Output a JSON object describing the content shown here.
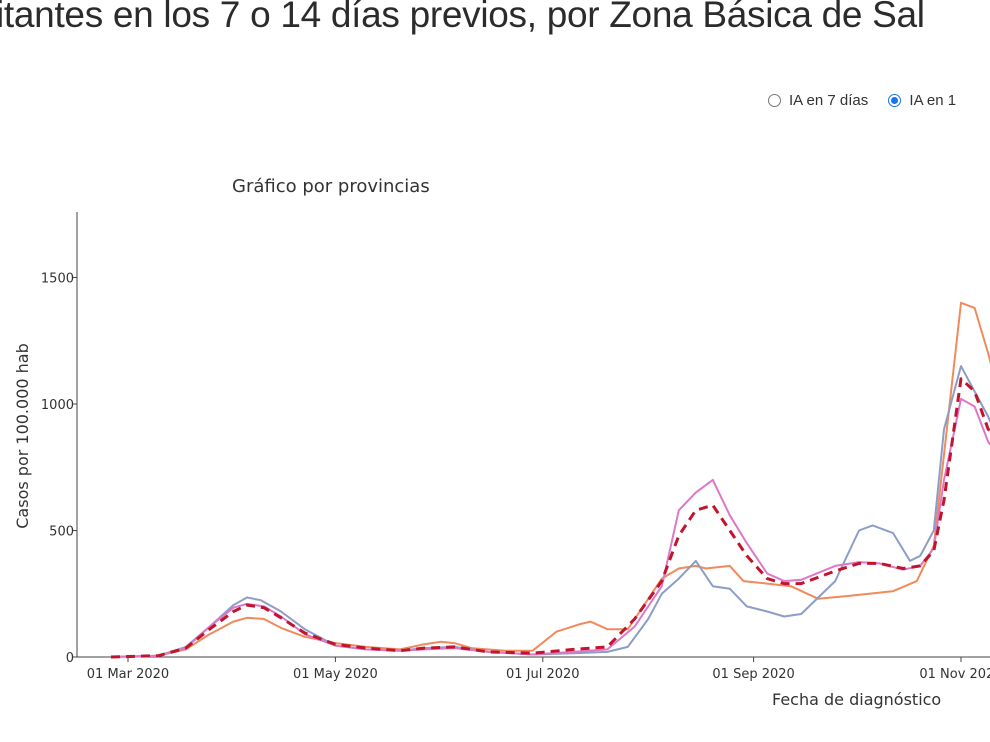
{
  "page": {
    "headline": "itantes en los 7 o 14 días previos, por Zona Básica de Sal"
  },
  "controls": {
    "options": [
      {
        "label": "IA en 7 días",
        "checked": false
      },
      {
        "label": "IA en 1",
        "checked": true
      }
    ]
  },
  "colors": {
    "orange": "#f08a5d",
    "blue": "#8c9dc6",
    "pink": "#dd77c9",
    "red": "#c0152c",
    "axis": "#444444"
  },
  "chart_data": {
    "type": "line",
    "title": "Gráfico por provincias",
    "xlabel": "Fecha de diagnóstico",
    "ylabel": "Casos por 100.000 hab",
    "x_ticks": [
      "01 Mar 2020",
      "01 May 2020",
      "01 Jul 2020",
      "01 Sep 2020",
      "01 Nov 2020"
    ],
    "y_ticks": [
      0,
      500,
      1000,
      1500
    ],
    "xlim": [
      "2020-02-15",
      "2020-11-13"
    ],
    "ylim": [
      0,
      1750
    ],
    "legend": "none",
    "series": [
      {
        "color": "#f08a5d",
        "dash": false,
        "points": [
          [
            "2020-02-25",
            0
          ],
          [
            "2020-03-10",
            5
          ],
          [
            "2020-03-18",
            30
          ],
          [
            "2020-03-25",
            90
          ],
          [
            "2020-04-01",
            140
          ],
          [
            "2020-04-05",
            155
          ],
          [
            "2020-04-10",
            150
          ],
          [
            "2020-04-15",
            115
          ],
          [
            "2020-04-22",
            80
          ],
          [
            "2020-05-01",
            55
          ],
          [
            "2020-05-10",
            40
          ],
          [
            "2020-05-20",
            30
          ],
          [
            "2020-05-27",
            50
          ],
          [
            "2020-06-01",
            60
          ],
          [
            "2020-06-05",
            55
          ],
          [
            "2020-06-10",
            35
          ],
          [
            "2020-06-20",
            25
          ],
          [
            "2020-06-28",
            25
          ],
          [
            "2020-07-05",
            100
          ],
          [
            "2020-07-12",
            130
          ],
          [
            "2020-07-15",
            140
          ],
          [
            "2020-07-20",
            110
          ],
          [
            "2020-07-26",
            110
          ],
          [
            "2020-07-31",
            210
          ],
          [
            "2020-08-05",
            310
          ],
          [
            "2020-08-10",
            350
          ],
          [
            "2020-08-15",
            360
          ],
          [
            "2020-08-18",
            350
          ],
          [
            "2020-08-25",
            360
          ],
          [
            "2020-08-29",
            300
          ],
          [
            "2020-09-05",
            290
          ],
          [
            "2020-09-12",
            280
          ],
          [
            "2020-09-20",
            230
          ],
          [
            "2020-09-28",
            240
          ],
          [
            "2020-10-05",
            250
          ],
          [
            "2020-10-12",
            260
          ],
          [
            "2020-10-19",
            300
          ],
          [
            "2020-10-24",
            440
          ],
          [
            "2020-10-27",
            800
          ],
          [
            "2020-11-01",
            1400
          ],
          [
            "2020-11-05",
            1380
          ],
          [
            "2020-11-09",
            1200
          ],
          [
            "2020-11-13",
            1000
          ]
        ]
      },
      {
        "color": "#8c9dc6",
        "dash": false,
        "points": [
          [
            "2020-02-25",
            0
          ],
          [
            "2020-03-10",
            5
          ],
          [
            "2020-03-18",
            40
          ],
          [
            "2020-03-25",
            120
          ],
          [
            "2020-04-01",
            205
          ],
          [
            "2020-04-05",
            235
          ],
          [
            "2020-04-09",
            225
          ],
          [
            "2020-04-15",
            180
          ],
          [
            "2020-04-22",
            110
          ],
          [
            "2020-05-01",
            45
          ],
          [
            "2020-05-10",
            30
          ],
          [
            "2020-05-20",
            25
          ],
          [
            "2020-05-27",
            35
          ],
          [
            "2020-06-05",
            40
          ],
          [
            "2020-06-15",
            20
          ],
          [
            "2020-06-28",
            10
          ],
          [
            "2020-07-10",
            15
          ],
          [
            "2020-07-20",
            20
          ],
          [
            "2020-07-26",
            40
          ],
          [
            "2020-08-01",
            150
          ],
          [
            "2020-08-05",
            250
          ],
          [
            "2020-08-10",
            310
          ],
          [
            "2020-08-15",
            380
          ],
          [
            "2020-08-20",
            280
          ],
          [
            "2020-08-25",
            270
          ],
          [
            "2020-08-30",
            200
          ],
          [
            "2020-09-05",
            180
          ],
          [
            "2020-09-10",
            160
          ],
          [
            "2020-09-15",
            170
          ],
          [
            "2020-09-25",
            300
          ],
          [
            "2020-10-02",
            500
          ],
          [
            "2020-10-06",
            520
          ],
          [
            "2020-10-12",
            490
          ],
          [
            "2020-10-17",
            380
          ],
          [
            "2020-10-20",
            400
          ],
          [
            "2020-10-24",
            500
          ],
          [
            "2020-10-27",
            900
          ],
          [
            "2020-11-01",
            1150
          ],
          [
            "2020-11-05",
            1050
          ],
          [
            "2020-11-09",
            950
          ],
          [
            "2020-11-13",
            820
          ]
        ]
      },
      {
        "color": "#dd77c9",
        "dash": false,
        "points": [
          [
            "2020-02-25",
            0
          ],
          [
            "2020-03-10",
            5
          ],
          [
            "2020-03-18",
            35
          ],
          [
            "2020-03-25",
            120
          ],
          [
            "2020-04-01",
            195
          ],
          [
            "2020-04-05",
            210
          ],
          [
            "2020-04-10",
            200
          ],
          [
            "2020-04-15",
            160
          ],
          [
            "2020-04-22",
            90
          ],
          [
            "2020-05-01",
            45
          ],
          [
            "2020-05-10",
            30
          ],
          [
            "2020-05-20",
            25
          ],
          [
            "2020-05-27",
            30
          ],
          [
            "2020-06-05",
            35
          ],
          [
            "2020-06-15",
            20
          ],
          [
            "2020-06-28",
            10
          ],
          [
            "2020-07-10",
            20
          ],
          [
            "2020-07-20",
            30
          ],
          [
            "2020-07-28",
            120
          ],
          [
            "2020-08-05",
            280
          ],
          [
            "2020-08-10",
            580
          ],
          [
            "2020-08-15",
            650
          ],
          [
            "2020-08-20",
            700
          ],
          [
            "2020-08-25",
            560
          ],
          [
            "2020-08-30",
            450
          ],
          [
            "2020-09-05",
            330
          ],
          [
            "2020-09-10",
            300
          ],
          [
            "2020-09-15",
            305
          ],
          [
            "2020-09-25",
            360
          ],
          [
            "2020-10-02",
            375
          ],
          [
            "2020-10-08",
            370
          ],
          [
            "2020-10-15",
            345
          ],
          [
            "2020-10-20",
            360
          ],
          [
            "2020-10-24",
            430
          ],
          [
            "2020-10-27",
            700
          ],
          [
            "2020-11-01",
            1020
          ],
          [
            "2020-11-05",
            990
          ],
          [
            "2020-11-09",
            850
          ],
          [
            "2020-11-13",
            780
          ]
        ]
      },
      {
        "color": "#c0152c",
        "dash": true,
        "points": [
          [
            "2020-02-25",
            0
          ],
          [
            "2020-03-10",
            5
          ],
          [
            "2020-03-18",
            35
          ],
          [
            "2020-03-25",
            110
          ],
          [
            "2020-04-01",
            180
          ],
          [
            "2020-04-05",
            205
          ],
          [
            "2020-04-10",
            195
          ],
          [
            "2020-04-15",
            155
          ],
          [
            "2020-04-22",
            95
          ],
          [
            "2020-05-01",
            50
          ],
          [
            "2020-05-10",
            35
          ],
          [
            "2020-05-20",
            25
          ],
          [
            "2020-05-27",
            35
          ],
          [
            "2020-06-05",
            40
          ],
          [
            "2020-06-15",
            20
          ],
          [
            "2020-06-28",
            15
          ],
          [
            "2020-07-10",
            30
          ],
          [
            "2020-07-20",
            40
          ],
          [
            "2020-07-28",
            150
          ],
          [
            "2020-08-05",
            300
          ],
          [
            "2020-08-10",
            480
          ],
          [
            "2020-08-15",
            580
          ],
          [
            "2020-08-20",
            600
          ],
          [
            "2020-08-25",
            500
          ],
          [
            "2020-08-30",
            400
          ],
          [
            "2020-09-05",
            310
          ],
          [
            "2020-09-10",
            290
          ],
          [
            "2020-09-15",
            290
          ],
          [
            "2020-09-25",
            340
          ],
          [
            "2020-10-02",
            370
          ],
          [
            "2020-10-08",
            370
          ],
          [
            "2020-10-15",
            350
          ],
          [
            "2020-10-20",
            360
          ],
          [
            "2020-10-24",
            420
          ],
          [
            "2020-10-27",
            620
          ],
          [
            "2020-11-01",
            1100
          ],
          [
            "2020-11-05",
            1050
          ],
          [
            "2020-11-09",
            900
          ],
          [
            "2020-11-13",
            860
          ]
        ]
      }
    ]
  }
}
